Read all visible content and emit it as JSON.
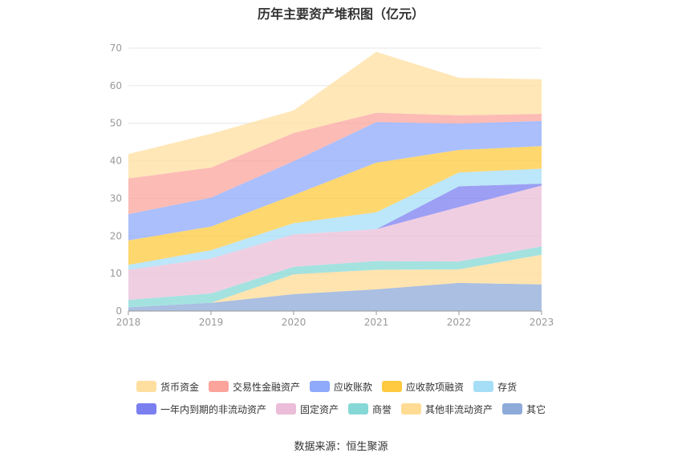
{
  "source": "数据来源：恒生聚源",
  "chart_data": {
    "type": "area",
    "stacked": true,
    "title": "历年主要资产堆积图（亿元）",
    "x": [
      "2018",
      "2019",
      "2020",
      "2021",
      "2022",
      "2023"
    ],
    "ylim": [
      0,
      70
    ],
    "yticks": [
      0,
      10,
      20,
      30,
      40,
      50,
      60,
      70
    ],
    "grid": true,
    "legend_position": "bottom",
    "series": [
      {
        "name": "其它",
        "color": "#8eaad8",
        "values": [
          1.0,
          2.2,
          4.5,
          5.8,
          7.5,
          7.1
        ]
      },
      {
        "name": "其他非流动资产",
        "color": "#ffdb94",
        "values": [
          0.0,
          0.0,
          5.3,
          5.2,
          3.6,
          7.9
        ]
      },
      {
        "name": "商誉",
        "color": "#86d8d6",
        "values": [
          2.0,
          2.5,
          2.0,
          2.3,
          2.1,
          2.2
        ]
      },
      {
        "name": "固定资产",
        "color": "#ebbdd8",
        "values": [
          8.0,
          9.3,
          8.6,
          8.5,
          14.5,
          16.2
        ]
      },
      {
        "name": "一年内到期的非流动资产",
        "color": "#7b7ff0",
        "values": [
          0.0,
          0.0,
          0.0,
          0.0,
          5.5,
          0.5
        ]
      },
      {
        "name": "存货",
        "color": "#a6def7",
        "values": [
          1.3,
          2.2,
          3.0,
          4.5,
          3.7,
          4.0
        ]
      },
      {
        "name": "应收款项融资",
        "color": "#ffc93f",
        "values": [
          6.5,
          6.3,
          7.5,
          13.2,
          6.0,
          6.0
        ]
      },
      {
        "name": "应收账款",
        "color": "#8fa9fb",
        "values": [
          7.0,
          7.7,
          9.0,
          10.8,
          7.0,
          6.7
        ]
      },
      {
        "name": "交易性金融资产",
        "color": "#fba49c",
        "values": [
          9.5,
          8.0,
          7.5,
          2.5,
          2.2,
          1.9
        ]
      },
      {
        "name": "货币资金",
        "color": "#ffdfa0",
        "values": [
          6.5,
          9.0,
          6.0,
          16.2,
          10.0,
          9.2
        ]
      }
    ]
  },
  "legend_rows": [
    [
      {
        "name": "货币资金",
        "color": "#ffdfa0"
      },
      {
        "name": "交易性金融资产",
        "color": "#fba49c"
      },
      {
        "name": "应收账款",
        "color": "#8fa9fb"
      },
      {
        "name": "应收款项融资",
        "color": "#ffc93f"
      },
      {
        "name": "存货",
        "color": "#a6def7"
      }
    ],
    [
      {
        "name": "一年内到期的非流动资产",
        "color": "#7b7ff0"
      },
      {
        "name": "固定资产",
        "color": "#ebbdd8"
      },
      {
        "name": "商誉",
        "color": "#86d8d6"
      },
      {
        "name": "其他非流动资产",
        "color": "#ffdb94"
      },
      {
        "name": "其它",
        "color": "#8eaad8"
      }
    ]
  ]
}
